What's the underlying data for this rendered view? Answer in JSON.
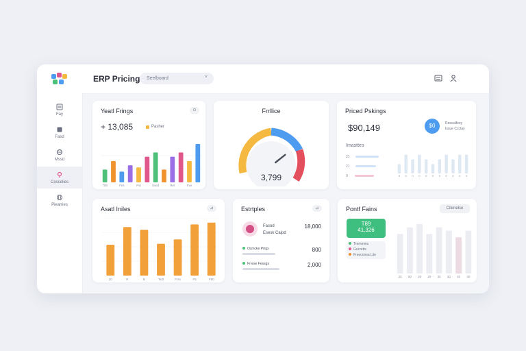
{
  "app": {
    "title": "ERP Pricing"
  },
  "search": {
    "value": "Seelboard",
    "chevron": "˅"
  },
  "sidebar": {
    "items": [
      {
        "label": "Fay",
        "icon": "list-icon"
      },
      {
        "label": "Fasd",
        "icon": "box-icon"
      },
      {
        "label": "Mssd",
        "icon": "refresh-icon"
      },
      {
        "label": "Coscelies",
        "icon": "pin-icon"
      },
      {
        "label": "Piearries",
        "icon": "globe-icon"
      }
    ]
  },
  "cards": {
    "yearly": {
      "title": "Yeatl Frings",
      "menu": "⊙",
      "prefix": "+",
      "value": "13,085",
      "legend": "Pasher",
      "chart_data": {
        "type": "bar",
        "categories": [
          "708",
          "",
          "Fes",
          "",
          "Pxt",
          "",
          "Ssed",
          "",
          "Ret",
          "",
          "Fxe",
          ""
        ],
        "values": [
          3,
          5,
          2.5,
          4,
          3.5,
          6,
          7,
          3,
          6,
          7,
          5,
          9
        ],
        "colors": [
          "#4ec07a",
          "#f0922e",
          "#4d9cf0",
          "#9a6ee6",
          "#f5b840",
          "#e0578b",
          "#4ec07a",
          "#f0922e",
          "#9a6ee6",
          "#e0578b",
          "#f5b840",
          "#4d9cf0"
        ]
      }
    },
    "gauge": {
      "title": "Frrllice",
      "value": "3,799",
      "chart_data": {
        "type": "gauge",
        "level": 0.72
      }
    },
    "priced": {
      "title": "Priced Pskings",
      "value": "$90,149",
      "badge": "$0",
      "badge_text": [
        "Reeealfeey",
        "Issue Ccctay"
      ],
      "subtitle": "Imasttes",
      "rows": [
        "21",
        "21",
        "0"
      ],
      "chart_data": {
        "type": "bar",
        "values": [
          2,
          4,
          3,
          4,
          3,
          2,
          3,
          4,
          3,
          4,
          4
        ],
        "categories": [
          "0",
          "0",
          "0",
          "0",
          "0",
          "0",
          "0",
          "0",
          "0",
          "0",
          "0"
        ]
      }
    },
    "asset": {
      "title": "Asatl Iniles",
      "menu": "⊿",
      "chart_data": {
        "type": "bar",
        "categories": [
          "20",
          "R",
          "B",
          "Tsdt",
          "Frss",
          "F5",
          "F80"
        ],
        "values": [
          3.5,
          5.5,
          5.2,
          3.6,
          4.1,
          5.8,
          6.0
        ]
      }
    },
    "estimates": {
      "title": "Estrtples",
      "menu": "⊿",
      "item1": {
        "title": "Fasnd",
        "sub": "Esesk Caipd",
        "value": "18,000"
      },
      "item2": {
        "label": "Osmcke Prrgs",
        "value": "800"
      },
      "item3": {
        "label": "Frrese Fessgs",
        "value": "2,000"
      }
    },
    "point": {
      "title": "Pontf Fains",
      "button": "Cilenelse",
      "green_value": "T89",
      "green_sub": "41,326",
      "legend": [
        "Tremmms",
        "Gurvetts",
        "Freeconsa Lite"
      ],
      "legend_colors": [
        "#4ec07a",
        "#e0578b",
        "#f0922e"
      ],
      "chart_data": {
        "type": "bar",
        "categories": [
          "20",
          "50",
          "20",
          "20",
          "30",
          "30",
          "20",
          "30"
        ],
        "values": [
          6,
          7,
          7.5,
          6,
          7,
          6.5,
          5.5,
          6.5
        ]
      }
    }
  }
}
